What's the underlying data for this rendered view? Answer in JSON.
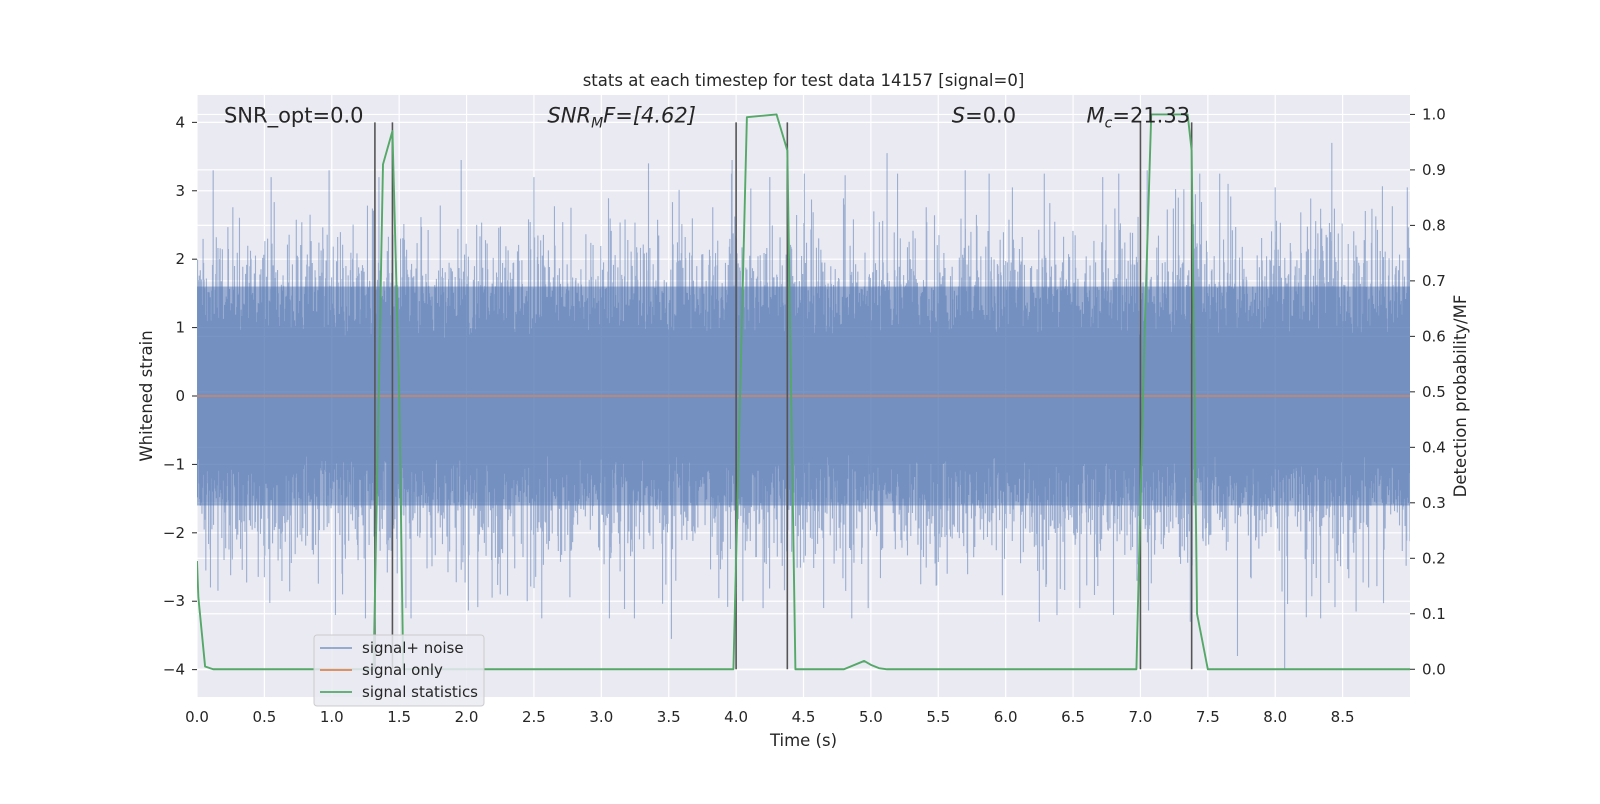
{
  "chart_data": {
    "type": "line",
    "title": "stats at each timestep for test data 14157 [signal=0]",
    "xlabel": "Time (s)",
    "ylabel": "Whitened strain",
    "ylabel_right": "Detection probability/MF",
    "xlim": [
      0.0,
      9.0
    ],
    "ylim": [
      -4.4,
      4.4
    ],
    "ylim_right": [
      -0.05,
      1.035
    ],
    "x_ticks": [
      0.0,
      0.5,
      1.0,
      1.5,
      2.0,
      2.5,
      3.0,
      3.5,
      4.0,
      4.5,
      5.0,
      5.5,
      6.0,
      6.5,
      7.0,
      7.5,
      8.0,
      8.5
    ],
    "x_tick_labels": [
      "0.0",
      "0.5",
      "1.0",
      "1.5",
      "2.0",
      "2.5",
      "3.0",
      "3.5",
      "4.0",
      "4.5",
      "5.0",
      "5.5",
      "6.0",
      "6.5",
      "7.0",
      "7.5",
      "8.0",
      "8.5"
    ],
    "y_ticks": [
      -4,
      -3,
      -2,
      -1,
      0,
      1,
      2,
      3,
      4
    ],
    "y_tick_labels": [
      "−4",
      "−3",
      "−2",
      "−1",
      "0",
      "1",
      "2",
      "3",
      "4"
    ],
    "y_right_ticks": [
      0.0,
      0.1,
      0.2,
      0.3,
      0.4,
      0.5,
      0.6,
      0.7,
      0.8,
      0.9,
      1.0
    ],
    "y_right_tick_labels": [
      "0.0",
      "0.1",
      "0.2",
      "0.3",
      "0.4",
      "0.5",
      "0.6",
      "0.7",
      "0.8",
      "0.9",
      "1.0"
    ],
    "grid": true,
    "legend_position": "bottom-left",
    "annotations": [
      {
        "x": 0.2,
        "y": 4.0,
        "prefix": "SNR_opt=0.0",
        "sub": "",
        "suffix": ""
      },
      {
        "x": 2.6,
        "y": 4.0,
        "prefix": "SNR",
        "sub": "M",
        "suffix": "F=[4.62]"
      },
      {
        "x": 5.6,
        "y": 4.0,
        "prefix": "S",
        "sub": "",
        "suffix": "=0.0"
      },
      {
        "x": 6.6,
        "y": 4.0,
        "prefix": "M",
        "sub": "c",
        "suffix": "=21.33"
      }
    ],
    "series": [
      {
        "name": "signal+ noise",
        "color": "#4c72b0",
        "render": "noise",
        "x_range": [
          0.0,
          9.0
        ],
        "envelope": [
          1.6,
          -1.6
        ],
        "spike_peaks_upper": [
          [
            0.12,
            3.3
          ],
          [
            0.55,
            3.2
          ],
          [
            0.98,
            3.3
          ],
          [
            1.35,
            3.2
          ],
          [
            1.96,
            3.45
          ],
          [
            2.5,
            3.2
          ],
          [
            3.35,
            3.4
          ],
          [
            3.97,
            3.45
          ],
          [
            4.25,
            3.2
          ],
          [
            4.8,
            2.8
          ],
          [
            5.12,
            3.55
          ],
          [
            5.7,
            3.3
          ],
          [
            6.05,
            3.05
          ],
          [
            6.72,
            3.2
          ],
          [
            7.05,
            3.3
          ],
          [
            7.44,
            3.25
          ],
          [
            7.65,
            3.1
          ],
          [
            8.0,
            3.05
          ],
          [
            8.42,
            3.7
          ],
          [
            8.98,
            3.05
          ]
        ],
        "spike_peaks_lower": [
          [
            0.1,
            -2.8
          ],
          [
            0.5,
            -2.65
          ],
          [
            1.08,
            -2.9
          ],
          [
            1.25,
            -3.25
          ],
          [
            1.55,
            -3.1
          ],
          [
            2.25,
            -2.9
          ],
          [
            2.45,
            -3.0
          ],
          [
            3.06,
            -3.25
          ],
          [
            3.52,
            -3.55
          ],
          [
            4.05,
            -3.0
          ],
          [
            4.2,
            -3.1
          ],
          [
            4.98,
            -3.1
          ],
          [
            6.25,
            -3.3
          ],
          [
            6.55,
            -3.1
          ],
          [
            6.8,
            -3.2
          ],
          [
            7.0,
            -3.3
          ],
          [
            7.37,
            -3.3
          ],
          [
            7.72,
            -3.8
          ],
          [
            8.07,
            -4.0
          ],
          [
            8.6,
            -3.15
          ]
        ]
      },
      {
        "name": "signal only",
        "color": "#dd8452",
        "render": "line",
        "axis": "left",
        "x": [
          0.0,
          9.0
        ],
        "y": [
          0.0,
          0.0
        ]
      },
      {
        "name": "signal statistics",
        "color": "#55a868",
        "render": "line",
        "axis": "right",
        "x": [
          0.0,
          0.01,
          0.06,
          0.12,
          1.31,
          1.38,
          1.45,
          1.5,
          1.53,
          3.98,
          4.03,
          4.08,
          4.3,
          4.38,
          4.44,
          4.5,
          4.8,
          4.95,
          5.0,
          5.06,
          5.12,
          6.97,
          7.03,
          7.08,
          7.35,
          7.38,
          7.42,
          7.5,
          9.0
        ],
        "y": [
          0.195,
          0.13,
          0.005,
          0.0,
          0.0,
          0.91,
          0.97,
          0.5,
          0.0,
          0.0,
          0.5,
          0.995,
          1.0,
          0.935,
          0.0,
          0.0,
          0.0,
          0.015,
          0.008,
          0.002,
          0.0,
          0.0,
          0.6,
          1.0,
          1.0,
          0.935,
          0.1,
          0.0,
          0.0
        ]
      }
    ],
    "vertical_markers": [
      1.32,
      1.45,
      4.0,
      4.38,
      7.0,
      7.38
    ]
  }
}
